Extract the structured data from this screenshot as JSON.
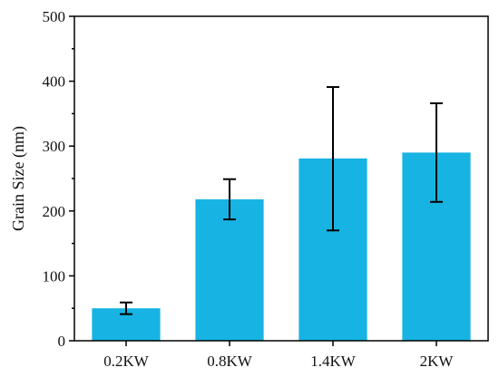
{
  "chart_data": {
    "type": "bar",
    "categories": [
      "0.2KW",
      "0.8KW",
      "1.4KW",
      "2KW"
    ],
    "values": [
      50,
      218,
      281,
      290
    ],
    "error_low": [
      41,
      187,
      170,
      214
    ],
    "error_high": [
      59,
      249,
      391,
      366
    ],
    "title": "",
    "xlabel": "",
    "ylabel": "Grain Size (nm)",
    "ylim": [
      0,
      500
    ],
    "yticks": [
      0,
      100,
      200,
      300,
      400,
      500
    ],
    "grid": false,
    "colors": {
      "bar": "#17b4e3",
      "error_bar": "#000000"
    }
  }
}
